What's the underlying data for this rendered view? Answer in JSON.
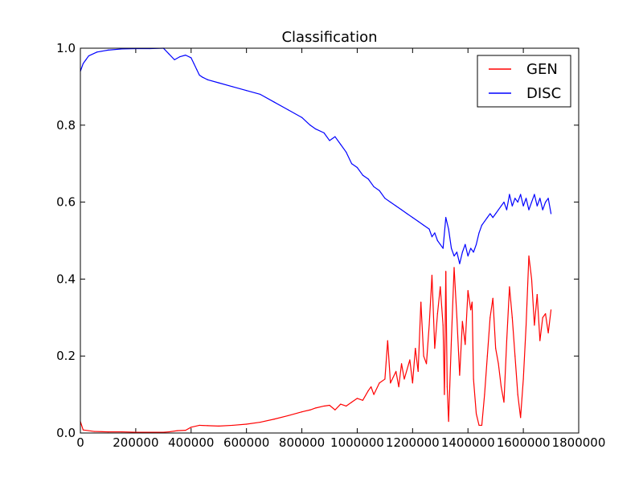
{
  "chart_data": {
    "type": "line",
    "title": "Classification",
    "xlim": [
      0,
      1800000
    ],
    "ylim": [
      0.0,
      1.0
    ],
    "xticks": [
      "0",
      "200000",
      "400000",
      "600000",
      "800000",
      "1000000",
      "1200000",
      "1400000",
      "1600000",
      "1800000"
    ],
    "yticks": [
      "0.0",
      "0.2",
      "0.4",
      "0.6",
      "0.8",
      "1.0"
    ],
    "legend_location": "top-right",
    "series": [
      {
        "name": "GEN",
        "color": "#ff0000",
        "points": [
          [
            0,
            0.03
          ],
          [
            10000,
            0.008
          ],
          [
            50000,
            0.004
          ],
          [
            100000,
            0.003
          ],
          [
            150000,
            0.003
          ],
          [
            200000,
            0.002
          ],
          [
            250000,
            0.002
          ],
          [
            300000,
            0.002
          ],
          [
            320000,
            0.003
          ],
          [
            350000,
            0.006
          ],
          [
            380000,
            0.007
          ],
          [
            400000,
            0.015
          ],
          [
            430000,
            0.02
          ],
          [
            460000,
            0.019
          ],
          [
            500000,
            0.018
          ],
          [
            550000,
            0.02
          ],
          [
            600000,
            0.023
          ],
          [
            650000,
            0.028
          ],
          [
            700000,
            0.036
          ],
          [
            750000,
            0.045
          ],
          [
            800000,
            0.055
          ],
          [
            830000,
            0.06
          ],
          [
            850000,
            0.065
          ],
          [
            880000,
            0.07
          ],
          [
            900000,
            0.072
          ],
          [
            920000,
            0.06
          ],
          [
            940000,
            0.075
          ],
          [
            960000,
            0.07
          ],
          [
            980000,
            0.08
          ],
          [
            1000000,
            0.09
          ],
          [
            1020000,
            0.085
          ],
          [
            1040000,
            0.11
          ],
          [
            1050000,
            0.12
          ],
          [
            1060000,
            0.1
          ],
          [
            1080000,
            0.13
          ],
          [
            1100000,
            0.14
          ],
          [
            1110000,
            0.24
          ],
          [
            1120000,
            0.13
          ],
          [
            1140000,
            0.16
          ],
          [
            1150000,
            0.12
          ],
          [
            1160000,
            0.18
          ],
          [
            1170000,
            0.14
          ],
          [
            1190000,
            0.19
          ],
          [
            1200000,
            0.13
          ],
          [
            1210000,
            0.22
          ],
          [
            1220000,
            0.16
          ],
          [
            1230000,
            0.34
          ],
          [
            1240000,
            0.2
          ],
          [
            1250000,
            0.18
          ],
          [
            1260000,
            0.28
          ],
          [
            1270000,
            0.41
          ],
          [
            1280000,
            0.22
          ],
          [
            1290000,
            0.31
          ],
          [
            1300000,
            0.38
          ],
          [
            1310000,
            0.28
          ],
          [
            1315000,
            0.1
          ],
          [
            1320000,
            0.42
          ],
          [
            1325000,
            0.12
          ],
          [
            1330000,
            0.03
          ],
          [
            1340000,
            0.24
          ],
          [
            1350000,
            0.43
          ],
          [
            1360000,
            0.3
          ],
          [
            1370000,
            0.15
          ],
          [
            1380000,
            0.29
          ],
          [
            1390000,
            0.23
          ],
          [
            1400000,
            0.37
          ],
          [
            1410000,
            0.32
          ],
          [
            1415000,
            0.34
          ],
          [
            1420000,
            0.14
          ],
          [
            1430000,
            0.05
          ],
          [
            1440000,
            0.02
          ],
          [
            1450000,
            0.02
          ],
          [
            1460000,
            0.1
          ],
          [
            1470000,
            0.2
          ],
          [
            1480000,
            0.3
          ],
          [
            1490000,
            0.35
          ],
          [
            1500000,
            0.22
          ],
          [
            1510000,
            0.18
          ],
          [
            1520000,
            0.12
          ],
          [
            1530000,
            0.08
          ],
          [
            1540000,
            0.24
          ],
          [
            1550000,
            0.38
          ],
          [
            1560000,
            0.3
          ],
          [
            1570000,
            0.2
          ],
          [
            1580000,
            0.1
          ],
          [
            1590000,
            0.04
          ],
          [
            1600000,
            0.14
          ],
          [
            1610000,
            0.28
          ],
          [
            1620000,
            0.46
          ],
          [
            1630000,
            0.4
          ],
          [
            1640000,
            0.28
          ],
          [
            1650000,
            0.36
          ],
          [
            1660000,
            0.24
          ],
          [
            1670000,
            0.3
          ],
          [
            1680000,
            0.31
          ],
          [
            1690000,
            0.26
          ],
          [
            1700000,
            0.32
          ]
        ]
      },
      {
        "name": "DISC",
        "color": "#0000ff",
        "points": [
          [
            0,
            0.94
          ],
          [
            10000,
            0.96
          ],
          [
            20000,
            0.97
          ],
          [
            30000,
            0.98
          ],
          [
            60000,
            0.99
          ],
          [
            100000,
            0.995
          ],
          [
            150000,
            0.998
          ],
          [
            200000,
            0.999
          ],
          [
            250000,
            0.999
          ],
          [
            300000,
            1.0
          ],
          [
            320000,
            0.985
          ],
          [
            340000,
            0.97
          ],
          [
            360000,
            0.978
          ],
          [
            380000,
            0.982
          ],
          [
            400000,
            0.975
          ],
          [
            410000,
            0.96
          ],
          [
            420000,
            0.945
          ],
          [
            430000,
            0.93
          ],
          [
            440000,
            0.925
          ],
          [
            460000,
            0.918
          ],
          [
            500000,
            0.91
          ],
          [
            550000,
            0.9
          ],
          [
            600000,
            0.89
          ],
          [
            650000,
            0.88
          ],
          [
            700000,
            0.86
          ],
          [
            750000,
            0.84
          ],
          [
            800000,
            0.82
          ],
          [
            830000,
            0.8
          ],
          [
            850000,
            0.79
          ],
          [
            880000,
            0.78
          ],
          [
            900000,
            0.76
          ],
          [
            920000,
            0.77
          ],
          [
            940000,
            0.75
          ],
          [
            960000,
            0.73
          ],
          [
            980000,
            0.7
          ],
          [
            1000000,
            0.69
          ],
          [
            1020000,
            0.67
          ],
          [
            1040000,
            0.66
          ],
          [
            1060000,
            0.64
          ],
          [
            1080000,
            0.63
          ],
          [
            1100000,
            0.61
          ],
          [
            1120000,
            0.6
          ],
          [
            1140000,
            0.59
          ],
          [
            1160000,
            0.58
          ],
          [
            1180000,
            0.57
          ],
          [
            1200000,
            0.56
          ],
          [
            1220000,
            0.55
          ],
          [
            1240000,
            0.54
          ],
          [
            1260000,
            0.53
          ],
          [
            1270000,
            0.51
          ],
          [
            1280000,
            0.52
          ],
          [
            1290000,
            0.5
          ],
          [
            1300000,
            0.49
          ],
          [
            1310000,
            0.48
          ],
          [
            1320000,
            0.56
          ],
          [
            1330000,
            0.53
          ],
          [
            1340000,
            0.48
          ],
          [
            1350000,
            0.46
          ],
          [
            1360000,
            0.47
          ],
          [
            1370000,
            0.44
          ],
          [
            1380000,
            0.47
          ],
          [
            1390000,
            0.49
          ],
          [
            1400000,
            0.46
          ],
          [
            1410000,
            0.48
          ],
          [
            1420000,
            0.47
          ],
          [
            1430000,
            0.49
          ],
          [
            1440000,
            0.52
          ],
          [
            1450000,
            0.54
          ],
          [
            1460000,
            0.55
          ],
          [
            1470000,
            0.56
          ],
          [
            1480000,
            0.57
          ],
          [
            1490000,
            0.56
          ],
          [
            1500000,
            0.57
          ],
          [
            1510000,
            0.58
          ],
          [
            1520000,
            0.59
          ],
          [
            1530000,
            0.6
          ],
          [
            1540000,
            0.58
          ],
          [
            1550000,
            0.62
          ],
          [
            1560000,
            0.59
          ],
          [
            1570000,
            0.61
          ],
          [
            1580000,
            0.6
          ],
          [
            1590000,
            0.62
          ],
          [
            1600000,
            0.59
          ],
          [
            1610000,
            0.61
          ],
          [
            1620000,
            0.58
          ],
          [
            1630000,
            0.6
          ],
          [
            1640000,
            0.62
          ],
          [
            1650000,
            0.59
          ],
          [
            1660000,
            0.61
          ],
          [
            1670000,
            0.58
          ],
          [
            1680000,
            0.6
          ],
          [
            1690000,
            0.61
          ],
          [
            1700000,
            0.57
          ]
        ]
      }
    ]
  }
}
